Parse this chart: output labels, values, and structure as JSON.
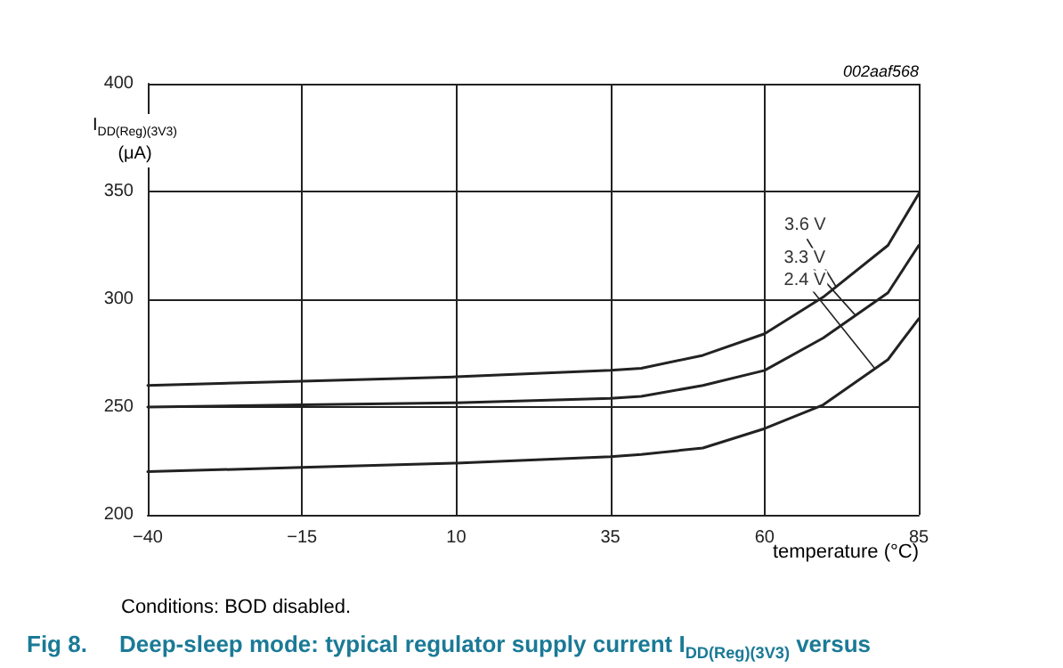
{
  "chart_data": {
    "type": "line",
    "title": "Fig 8.     Deep-sleep mode: typical regulator supply current I$_{DD(Reg)(3V3)}$ versus",
    "xlabel": "temperature (°C)",
    "ylabel": "I$_{DD(Reg)(3V3)}$ (μA)",
    "annotations": [
      "002aaf568",
      "Conditions: BOD disabled."
    ],
    "x": [
      -40,
      -15,
      10,
      35,
      40,
      50,
      60,
      69.5,
      80,
      85
    ],
    "series": [
      {
        "name": "3.6 V",
        "color": "#222222",
        "values": [
          260,
          262,
          264,
          267,
          268,
          274,
          284,
          301,
          325,
          349
        ]
      },
      {
        "name": "3.3 V",
        "color": "#222222",
        "values": [
          250,
          251,
          252,
          254,
          255,
          260,
          267,
          282,
          303,
          325
        ]
      },
      {
        "name": "2.4 V",
        "color": "#222222",
        "values": [
          220,
          222,
          224,
          227,
          228,
          231,
          240,
          251,
          272,
          291
        ]
      }
    ],
    "xlim": [
      -40,
      85
    ],
    "xticks": [
      -40,
      -15,
      10,
      35,
      60,
      85
    ],
    "ylim": [
      200,
      400
    ],
    "yticks": [
      200,
      250,
      300,
      350,
      400
    ],
    "grid": true,
    "legend": false,
    "marker": "none",
    "line_style": "solid"
  }
}
